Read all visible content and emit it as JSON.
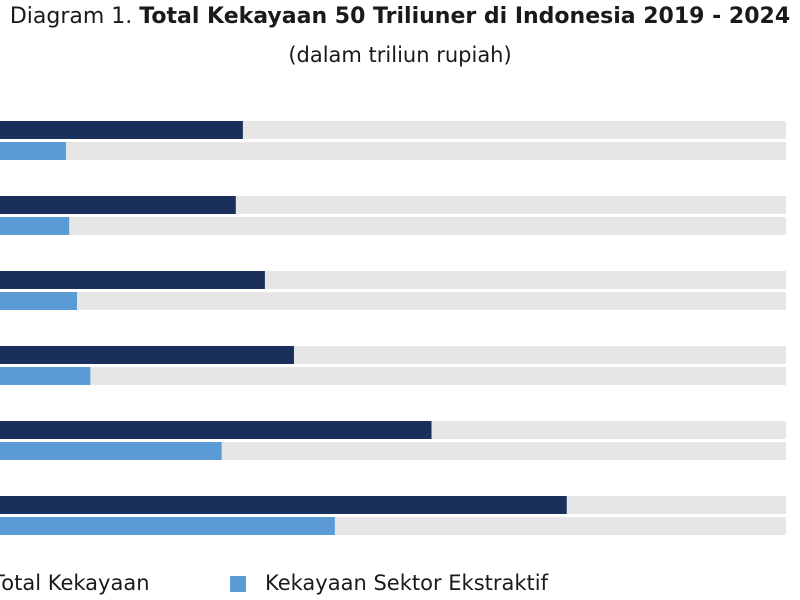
{
  "colors": {
    "total": "#1b2f5c",
    "ekstraktif": "#5b9bd5",
    "track": "#e6e6e6"
  },
  "chart_data": {
    "type": "bar",
    "orientation": "horizontal",
    "title_prefix": "Diagram 1.",
    "title": "Total Kekayaan 50 Triliuner di Indonesia 2019 - 2024",
    "subtitle": "(dalam triliun rupiah)",
    "xlabel": "",
    "ylabel": "",
    "grid": false,
    "legend_position": "bottom",
    "xlim": [
      0,
      1000
    ],
    "categories": [
      "",
      "",
      "",
      "",
      "",
      ""
    ],
    "series": [
      {
        "name": "Total Kekayaan",
        "values": [
          309,
          300,
          337,
          374,
          549,
          721
        ]
      },
      {
        "name": "Kekayaan Sektor Ekstraktif",
        "values": [
          84,
          88,
          98,
          115,
          282,
          426
        ]
      }
    ]
  }
}
